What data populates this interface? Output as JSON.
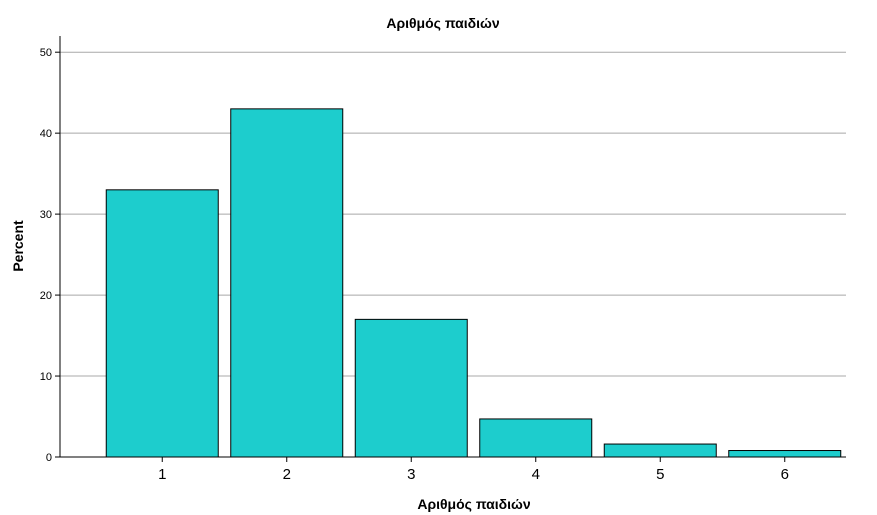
{
  "chart_data": {
    "type": "bar",
    "title": "Αριθμός παιδιών",
    "xlabel": "Αριθμός παιδιών",
    "ylabel": "Percent",
    "categories": [
      "1",
      "2",
      "3",
      "4",
      "5",
      "6"
    ],
    "values": [
      33.0,
      43.0,
      17.0,
      4.7,
      1.6,
      0.8
    ],
    "ylim": [
      0,
      52
    ],
    "yticks": [
      "0",
      "10",
      "20",
      "30",
      "40",
      "50"
    ],
    "grid": true,
    "bar_color": "#1dcdcd"
  }
}
